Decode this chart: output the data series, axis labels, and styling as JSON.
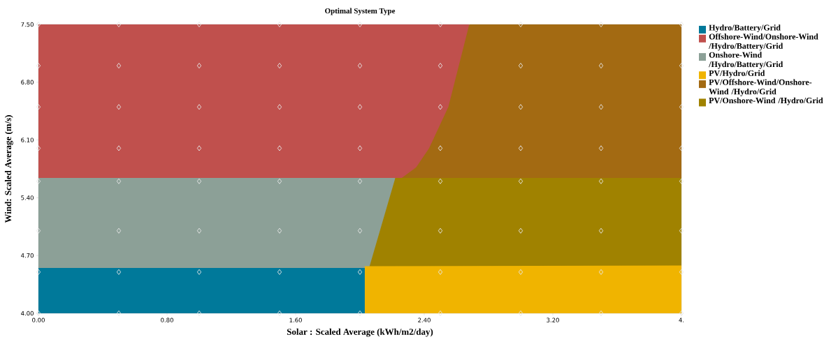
{
  "chart_data": {
    "type": "area",
    "title": "Optimal System Type",
    "xlabel": "Solar : Scaled Average (kWh/m2/day)",
    "ylabel": "Wind: Scaled Average (m/s)",
    "xlim": [
      0,
      4
    ],
    "ylim": [
      4,
      7.5
    ],
    "xticks": [
      {
        "value": 0,
        "label": "0.00"
      },
      {
        "value": 0.8,
        "label": "0.80"
      },
      {
        "value": 1.6,
        "label": "1.60"
      },
      {
        "value": 2.4,
        "label": "2.40"
      },
      {
        "value": 3.2,
        "label": "3.20"
      },
      {
        "value": 4,
        "label": "4."
      }
    ],
    "yticks": [
      {
        "value": 4,
        "label": "4.00"
      },
      {
        "value": 4.7,
        "label": "4.70"
      },
      {
        "value": 5.4,
        "label": "5.40"
      },
      {
        "value": 6.1,
        "label": "6.10"
      },
      {
        "value": 6.8,
        "label": "6.80"
      },
      {
        "value": 7.5,
        "label": "7.50"
      }
    ],
    "legend": "right",
    "series": [
      {
        "name": "Hydro/Battery/Grid",
        "color": "#00799a",
        "x": [
          0,
          2.03
        ],
        "values": [
          4.55,
          4.55
        ]
      },
      {
        "name": "Offshore-Wind/Onshore-Wind /Hydro/Battery/Grid",
        "color": "#c0504d",
        "x": [
          0,
          2.26,
          2.35,
          2.43,
          2.55,
          2.68
        ],
        "values": [
          7.5,
          7.5,
          7.5,
          7.5,
          7.5,
          7.5
        ]
      },
      {
        "name": "Onshore-Wind /Hydro/Battery/Grid",
        "color": "#8ca097",
        "x": [
          0,
          2.03,
          2.06,
          2.22
        ],
        "values": [
          5.64,
          5.64,
          5.64,
          5.64
        ]
      },
      {
        "name": "PV/Hydro/Grid",
        "color": "#f0b400",
        "x": [
          2.03,
          4
        ],
        "values": [
          4.57,
          4.58
        ]
      },
      {
        "name": "PV/Offshore-Wind/Onshore-Wind /Hydro/Grid",
        "color": "#a36a12",
        "x": [
          2.26,
          2.35,
          2.43,
          2.55,
          2.68,
          4
        ],
        "values": [
          5.64,
          5.77,
          6.0,
          6.5,
          7.5,
          7.5
        ]
      },
      {
        "name": "PV/Onshore-Wind /Hydro/Grid",
        "color": "#a08200",
        "x": [
          2.06,
          2.22,
          4
        ],
        "values": [
          4.57,
          5.64,
          5.64
        ]
      },
      {
        "type": "scatter",
        "marker": "diamond",
        "color": "#e6e6e6",
        "x": [
          0,
          0.5,
          1,
          1.5,
          2,
          2.5,
          3,
          3.5,
          4,
          0,
          0.5,
          1,
          1.5,
          2,
          2.5,
          3,
          3.5,
          4,
          0,
          0.5,
          1,
          1.5,
          2,
          2.5,
          3,
          3.5,
          4,
          0,
          0.5,
          1,
          1.5,
          2,
          2.5,
          3,
          3.5,
          4,
          0,
          0.5,
          1,
          1.5,
          2,
          2.5,
          3,
          3.5,
          4,
          0,
          0.5,
          1,
          1.5,
          2,
          2.5,
          3,
          3.5,
          4,
          0,
          0.5,
          1,
          1.5,
          2,
          2.5,
          3,
          3.5,
          4,
          0,
          0.5,
          1,
          1.5,
          2,
          2.5,
          3,
          3.5,
          4
        ],
        "values": [
          4,
          4,
          4,
          4,
          4,
          4,
          4,
          4,
          4,
          4.5,
          4.5,
          4.5,
          4.5,
          4.5,
          4.5,
          4.5,
          4.5,
          4.5,
          5,
          5,
          5,
          5,
          5,
          5,
          5,
          5,
          5,
          5.6,
          5.6,
          5.6,
          5.6,
          5.6,
          5.6,
          5.6,
          5.6,
          5.6,
          6,
          6,
          6,
          6,
          6,
          6,
          6,
          6,
          6,
          6.5,
          6.5,
          6.5,
          6.5,
          6.5,
          6.5,
          6.5,
          6.5,
          6.5,
          7,
          7,
          7,
          7,
          7,
          7,
          7,
          7,
          7,
          7.5,
          7.5,
          7.5,
          7.5,
          7.5,
          7.5,
          7.5,
          7.5,
          7.5
        ]
      }
    ]
  }
}
